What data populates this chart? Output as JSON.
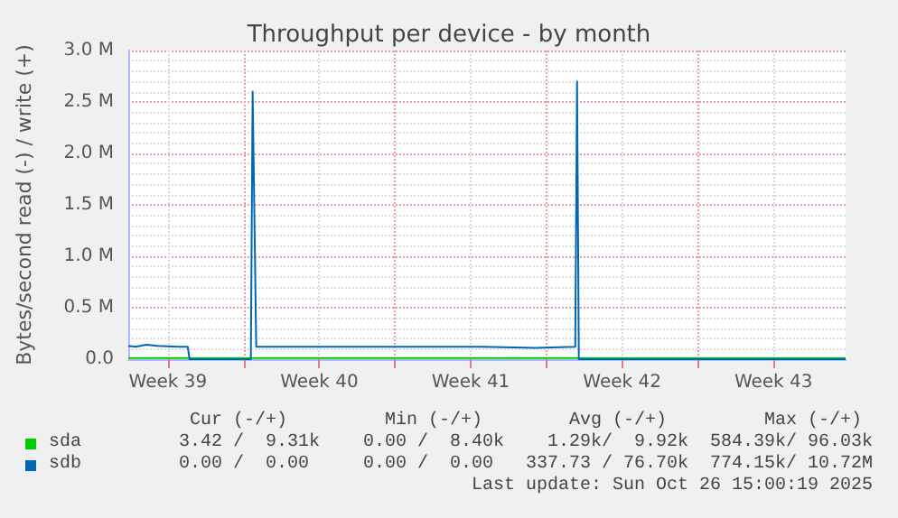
{
  "chart_data": {
    "type": "line",
    "title": "Throughput per device - by month",
    "ylabel": "Bytes/second read (-) / write (+)",
    "xlim": [
      "2025-09-23T16:00",
      "2025-10-26T20:00"
    ],
    "xticks": [
      {
        "value": "2025-09-25T12:00",
        "label": "Week 39"
      },
      {
        "value": "2025-09-29",
        "label": null
      },
      {
        "value": "2025-10-02T12:00",
        "label": "Week 40"
      },
      {
        "value": "2025-10-06",
        "label": null
      },
      {
        "value": "2025-10-09T12:00",
        "label": "Week 41"
      },
      {
        "value": "2025-10-13",
        "label": null
      },
      {
        "value": "2025-10-16T12:00",
        "label": "Week 42"
      },
      {
        "value": "2025-10-20",
        "label": null
      },
      {
        "value": "2025-10-23T12:00",
        "label": "Week 43"
      }
    ],
    "ylim": [
      0,
      3000000
    ],
    "yticks": [
      {
        "value": 0,
        "label": "0.0"
      },
      {
        "value": 500000,
        "label": "0.5 M"
      },
      {
        "value": 1000000,
        "label": "1.0 M"
      },
      {
        "value": 1500000,
        "label": "1.5 M"
      },
      {
        "value": 2000000,
        "label": "2.0 M"
      },
      {
        "value": 2500000,
        "label": "2.5 M"
      },
      {
        "value": 3000000,
        "label": "3.0 M"
      }
    ],
    "grid": true,
    "legend": "bottom",
    "series": [
      {
        "name": "sda",
        "color": "#00cc00",
        "x": [
          "2025-09-23T16:00",
          "2025-10-26T20:00"
        ],
        "values": [
          10000,
          10000
        ]
      },
      {
        "name": "sdb",
        "color": "#0066b3",
        "x": [
          "2025-09-23T16:00",
          "2025-09-24T00:00",
          "2025-09-24T12:00",
          "2025-09-25T00:00",
          "2025-09-26T00:00",
          "2025-09-26T10:00",
          "2025-09-26T12:00",
          "2025-09-29T08:00",
          "2025-09-29T10:00",
          "2025-09-29T14:00",
          "2025-10-02T00:00",
          "2025-10-06T00:00",
          "2025-10-10T00:00",
          "2025-10-12T12:00",
          "2025-10-14T08:00",
          "2025-10-14T10:00",
          "2025-10-14T12:00",
          "2025-10-26T20:00"
        ],
        "values": [
          130000,
          120000,
          140000,
          130000,
          120000,
          120000,
          0,
          0,
          2600000,
          120000,
          120000,
          120000,
          120000,
          110000,
          120000,
          2700000,
          0,
          0
        ]
      }
    ],
    "annotations": [
      " Cur (-/+)         Min (-/+)        Avg (-/+)         Max (-/+)",
      "3.42 /  9.31k    0.00 /  8.40k    1.29k/  9.92k  584.39k/ 96.03k",
      "0.00 /  0.00     0.00 /  0.00   337.73 / 76.70k  774.15k/ 10.72M",
      "Last update: Sun Oct 26 15:00:19 2025"
    ]
  }
}
